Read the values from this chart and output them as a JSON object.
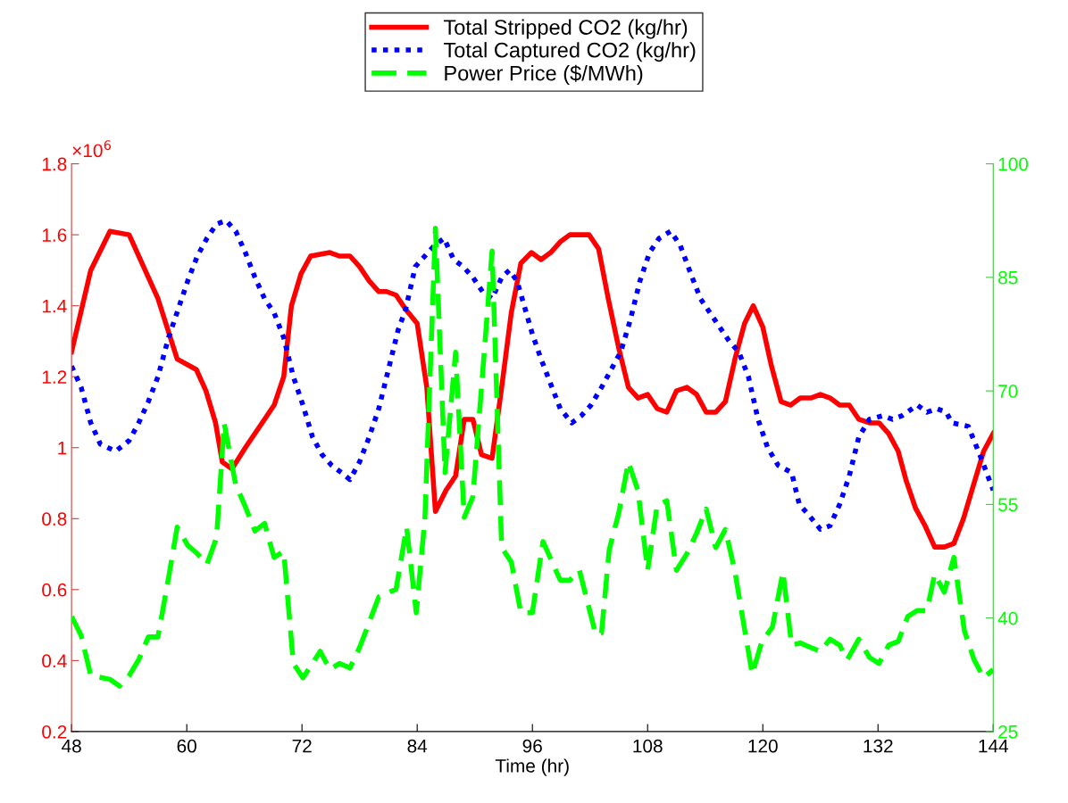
{
  "chart_data": {
    "type": "line",
    "xlabel": "Time (hr)",
    "xlim": [
      48,
      144
    ],
    "xticks": [
      48,
      60,
      72,
      84,
      96,
      108,
      120,
      132,
      144
    ],
    "ylim": [
      0.2,
      1.8
    ],
    "yticks": [
      0.2,
      0.4,
      0.6,
      0.8,
      1,
      1.2,
      1.4,
      1.6,
      1.8
    ],
    "y2lim": [
      25,
      100
    ],
    "y2ticks": [
      25,
      40,
      55,
      70,
      85,
      100
    ],
    "annotations": [
      "×10$^{6}$"
    ],
    "legend": "top",
    "grid": false,
    "series": [
      {
        "name": "Total Stripped CO2 (kg/hr)",
        "color": "#ff0000",
        "line_style": "solid",
        "x": [
          48,
          50,
          52,
          54,
          56,
          57,
          59,
          61,
          62,
          63,
          63.7,
          64.7,
          66.1,
          68.1,
          69.1,
          70.1,
          70.9,
          71.9,
          72.9,
          74.9,
          75.9,
          77,
          78,
          79,
          80,
          80.8,
          81.8,
          82.8,
          84,
          85,
          85.9,
          87,
          88,
          88.9,
          89.8,
          90.7,
          91.8,
          92.8,
          93.8,
          94.8,
          95.9,
          96.9,
          97.9,
          98.9,
          99.9,
          101.9,
          102.9,
          103.9,
          105,
          106,
          107,
          108,
          109,
          110,
          111,
          112.1,
          113.1,
          114.1,
          115.1,
          116.1,
          117.1,
          118.1,
          119,
          120,
          120.9,
          121.9,
          122.9,
          123.9,
          125,
          126,
          127,
          128,
          129,
          130,
          131.1,
          132.1,
          133.1,
          134.1,
          134.9,
          135.9,
          136.9,
          137.9,
          138.9,
          139.9,
          140.9,
          142,
          143,
          144
        ],
        "values": [
          1.27,
          1.5,
          1.61,
          1.6,
          1.48,
          1.42,
          1.25,
          1.22,
          1.16,
          1.07,
          0.96,
          0.94,
          1.0,
          1.08,
          1.12,
          1.2,
          1.4,
          1.49,
          1.54,
          1.55,
          1.54,
          1.54,
          1.51,
          1.47,
          1.44,
          1.44,
          1.43,
          1.39,
          1.35,
          1.17,
          0.82,
          0.88,
          0.92,
          1.08,
          1.08,
          0.98,
          0.97,
          1.17,
          1.38,
          1.52,
          1.55,
          1.53,
          1.55,
          1.58,
          1.6,
          1.6,
          1.56,
          1.42,
          1.28,
          1.17,
          1.14,
          1.15,
          1.11,
          1.1,
          1.16,
          1.17,
          1.15,
          1.1,
          1.1,
          1.13,
          1.25,
          1.35,
          1.4,
          1.34,
          1.23,
          1.13,
          1.12,
          1.14,
          1.14,
          1.15,
          1.14,
          1.12,
          1.12,
          1.08,
          1.07,
          1.07,
          1.04,
          0.99,
          0.91,
          0.83,
          0.78,
          0.72,
          0.72,
          0.73,
          0.8,
          0.9,
          0.99,
          1.04
        ]
      },
      {
        "name": "Total Captured CO2 (kg/hr)",
        "color": "#0000ff",
        "line_style": "dotted",
        "x": [
          48,
          49,
          50,
          51,
          52.6,
          54,
          55,
          56,
          57,
          58.1,
          59.1,
          60.1,
          61.1,
          62.1,
          63.1,
          64.1,
          65.1,
          66.1,
          67.1,
          68.1,
          69.1,
          70.1,
          71.1,
          72.1,
          73.1,
          74.1,
          75.1,
          76.1,
          77,
          78,
          79,
          80,
          81,
          82,
          82.8,
          83.8,
          84.8,
          85.8,
          86.8,
          87.8,
          88.8,
          89.8,
          90.8,
          91.8,
          92.8,
          93.6,
          94.4,
          96,
          96.9,
          97.9,
          98.9,
          100.1,
          101.1,
          102.1,
          103.2,
          104.2,
          105.2,
          106.2,
          107.2,
          108.2,
          109.2,
          110.4,
          111.4,
          112.5,
          113.5,
          114.5,
          115.5,
          116.5,
          117.5,
          118.5,
          119.5,
          120.5,
          121.6,
          123,
          123.8,
          124.8,
          126,
          127,
          128,
          129,
          130,
          131.1,
          132.5,
          133.5,
          134.5,
          136.1,
          137.1,
          138.1,
          139.1,
          139.7,
          141.4,
          142.6,
          144
        ],
        "values": [
          1.23,
          1.17,
          1.07,
          1.01,
          0.99,
          1.02,
          1.07,
          1.13,
          1.2,
          1.31,
          1.39,
          1.47,
          1.54,
          1.59,
          1.63,
          1.64,
          1.61,
          1.55,
          1.48,
          1.42,
          1.38,
          1.31,
          1.2,
          1.12,
          1.03,
          0.98,
          0.95,
          0.93,
          0.91,
          0.96,
          1.03,
          1.11,
          1.22,
          1.33,
          1.39,
          1.51,
          1.54,
          1.57,
          1.59,
          1.53,
          1.51,
          1.48,
          1.44,
          1.42,
          1.48,
          1.5,
          1.47,
          1.32,
          1.25,
          1.18,
          1.11,
          1.07,
          1.09,
          1.12,
          1.17,
          1.22,
          1.27,
          1.36,
          1.47,
          1.55,
          1.59,
          1.61,
          1.57,
          1.49,
          1.42,
          1.38,
          1.34,
          1.3,
          1.27,
          1.2,
          1.08,
          1.0,
          0.95,
          0.93,
          0.84,
          0.81,
          0.77,
          0.78,
          0.84,
          0.92,
          1.03,
          1.08,
          1.09,
          1.08,
          1.09,
          1.12,
          1.1,
          1.11,
          1.1,
          1.07,
          1.06,
          0.98,
          0.88
        ]
      },
      {
        "name": "Power Price ($/MWh)",
        "color": "#00ff00",
        "line_style": "dashed",
        "axis": "y2",
        "x": [
          48,
          49,
          50,
          52,
          53,
          54,
          55,
          56,
          57,
          58.1,
          59,
          60.1,
          61.1,
          62.1,
          63.1,
          63.9,
          65.1,
          66.1,
          67.1,
          68.1,
          69.1,
          70.1,
          71.1,
          72.1,
          73.9,
          74.9,
          75.9,
          77,
          78,
          79,
          80,
          81.8,
          82.9,
          83.9,
          84.8,
          85.9,
          86.9,
          88,
          88.9,
          89.8,
          90.8,
          91.8,
          92.8,
          93.8,
          94.8,
          96,
          97.1,
          98.9,
          99.9,
          100.9,
          102.6,
          103.2,
          104,
          105,
          106,
          107,
          108,
          109,
          110,
          111,
          112.1,
          113.1,
          114.1,
          115.1,
          116.1,
          117.1,
          118.1,
          118.9,
          119.9,
          121,
          122.1,
          123,
          123.9,
          125,
          126,
          127,
          128,
          128.8,
          130,
          131.1,
          132.1,
          133.1,
          134.1,
          135.1,
          136.1,
          137.1,
          137.9,
          138.9,
          139.9,
          141,
          142,
          143,
          144
        ],
        "values": [
          40.2,
          37.7,
          32.4,
          31.9,
          31.0,
          32.4,
          34.5,
          37.5,
          37.5,
          45.3,
          52.0,
          49.6,
          48.5,
          47.1,
          50.6,
          65.7,
          57.6,
          54.7,
          51.5,
          52.5,
          48.0,
          48.8,
          34.0,
          32.1,
          35.6,
          33.2,
          34.0,
          33.4,
          36.1,
          39.4,
          42.8,
          43.8,
          52.0,
          40.7,
          53.1,
          91.5,
          59.2,
          75.1,
          53.3,
          56.0,
          72.1,
          88.5,
          49.3,
          47.4,
          40.7,
          40.7,
          50.1,
          45.0,
          45.0,
          46.3,
          37.8,
          38.0,
          49.0,
          53.9,
          60.6,
          56.8,
          46.3,
          54.9,
          55.5,
          46.3,
          48.5,
          51.2,
          54.4,
          49.3,
          51.7,
          46.1,
          38.5,
          32.6,
          36.9,
          38.8,
          46.1,
          36.4,
          36.7,
          36.1,
          35.6,
          37.2,
          36.4,
          34.5,
          37.2,
          34.8,
          34.0,
          36.4,
          36.9,
          40.2,
          41.0,
          41.0,
          45.8,
          43.4,
          48.0,
          38.3,
          34.5,
          32.1,
          33.2
        ]
      }
    ]
  }
}
